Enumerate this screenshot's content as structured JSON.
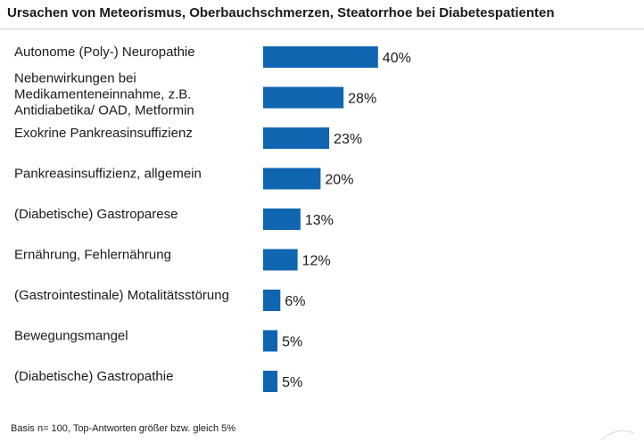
{
  "chart_data": {
    "type": "bar",
    "orientation": "horizontal",
    "title": "Ursachen von Meteorismus, Oberbauchschmerzen, Steatorrhoe bei Diabetespatienten",
    "categories": [
      [
        "Autonome (Poly-) Neuropathie"
      ],
      [
        "Nebenwirkungen bei",
        "Medikamenteneinnahme, z.B.",
        "Antidiabetika/ OAD, Metformin"
      ],
      [
        "Exokrine Pankreasinsuffizienz"
      ],
      [
        "Pankreasinsuffizienz, allgemein"
      ],
      [
        "(Diabetische) Gastroparese"
      ],
      [
        "Ernährung, Fehlernährung"
      ],
      [
        "(Gastrointestinale) Motalitätsstörung"
      ],
      [
        "Bewegungsmangel"
      ],
      [
        "(Diabetische) Gastropathie"
      ]
    ],
    "values": [
      40,
      28,
      23,
      20,
      13,
      12,
      6,
      5,
      5
    ],
    "value_labels": [
      "40%",
      "28%",
      "23%",
      "20%",
      "13%",
      "12%",
      "6%",
      "5%",
      "5%"
    ],
    "unit": "%",
    "xlim": [
      0,
      100
    ],
    "bar_color": "#0f65b0",
    "grid": false,
    "legend": "none"
  },
  "footnote": "Basis n= 100,  Top-Antworten größer bzw. gleich 5%"
}
